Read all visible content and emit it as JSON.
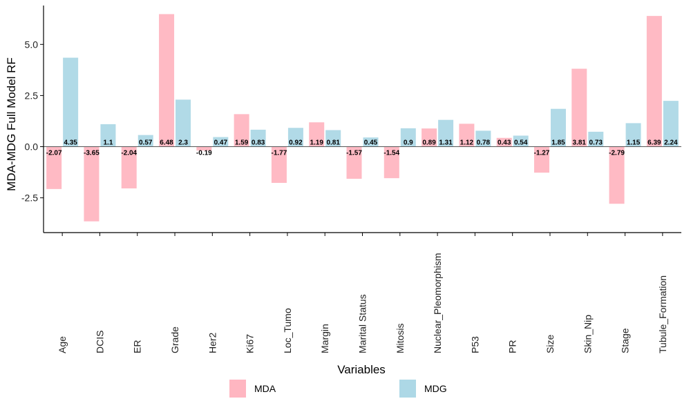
{
  "chart_data": {
    "type": "bar",
    "ylabel": "MDA-MDG Full Model RF",
    "xlabel": "Variables",
    "ylim": [
      -4.2,
      6.9
    ],
    "yticks": [
      -2.5,
      0.0,
      2.5,
      5.0
    ],
    "ytick_labels": [
      "-2.5",
      "0.0",
      "2.5",
      "5.0"
    ],
    "categories": [
      "Age",
      "DCIS",
      "ER",
      "Grade",
      "Her2",
      "Ki67",
      "Loc_Tumo",
      "Margin",
      "Marital Status",
      "Mitosis",
      "Nuclear_Pleomorphism",
      "P53",
      "PR",
      "Size",
      "Skin_Nip",
      "Stage",
      "Tubule_Formation"
    ],
    "series": [
      {
        "name": "MDA",
        "color": "#ffb6c1",
        "values": [
          -2.07,
          -3.65,
          -2.04,
          6.48,
          -0.19,
          1.59,
          -1.77,
          1.19,
          -1.57,
          -1.54,
          0.89,
          1.12,
          0.43,
          -1.27,
          3.81,
          -2.79,
          6.39
        ],
        "labels": [
          "-2.07",
          "-3.65",
          "-2.04",
          "6.48",
          "-0.19",
          "1.59",
          "-1.77",
          "1.19",
          "-1.57",
          "-1.54",
          "0.89",
          "1.12",
          "0.43",
          "-1.27",
          "3.81",
          "-2.79",
          "6.39"
        ]
      },
      {
        "name": "MDG",
        "color": "#add8e6",
        "values": [
          4.35,
          1.1,
          0.57,
          2.3,
          0.47,
          0.83,
          0.92,
          0.81,
          0.45,
          0.9,
          1.31,
          0.78,
          0.54,
          1.85,
          0.73,
          1.15,
          2.24
        ],
        "labels": [
          "4.35",
          "1.1",
          "0.57",
          "2.3",
          "0.47",
          "0.83",
          "0.92",
          "0.81",
          "0.45",
          "0.9",
          "1.31",
          "0.78",
          "0.54",
          "1.85",
          "0.73",
          "1.15",
          "2.24"
        ]
      }
    ],
    "grid": false,
    "legend_position": "bottom"
  }
}
